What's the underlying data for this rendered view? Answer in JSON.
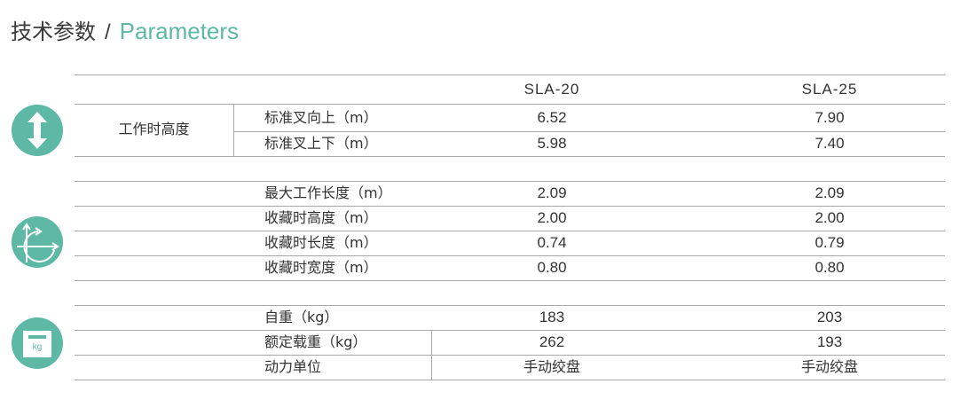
{
  "title": {
    "cn": "技术参数",
    "separator": "/",
    "en": "Parameters"
  },
  "columns": [
    "SLA-20",
    "SLA-25"
  ],
  "groups": [
    {
      "icon": "vertical-arrows-icon",
      "label": "工作时高度",
      "rows": [
        {
          "label": "标准叉向上（m）",
          "values": [
            "6.52",
            "7.90"
          ]
        },
        {
          "label": "标准叉上下（m）",
          "values": [
            "5.98",
            "7.40"
          ]
        }
      ]
    },
    {
      "icon": "axes-rotation-icon",
      "rows": [
        {
          "label": "最大工作长度（m）",
          "values": [
            "2.09",
            "2.09"
          ]
        },
        {
          "label": "收藏时高度（m）",
          "values": [
            "2.00",
            "2.00"
          ]
        },
        {
          "label": "收藏时长度（m）",
          "values": [
            "0.74",
            "0.79"
          ]
        },
        {
          "label": "收藏时宽度（m）",
          "values": [
            "0.80",
            "0.80"
          ]
        }
      ]
    },
    {
      "icon": "weight-kg-icon",
      "icon_text": "kg",
      "rows": [
        {
          "label": "自重（kg）",
          "values": [
            "183",
            "203"
          ]
        },
        {
          "label": "额定载重（kg）",
          "values": [
            "262",
            "193"
          ]
        },
        {
          "label": "动力单位",
          "values": [
            "手动绞盘",
            "手动绞盘"
          ]
        }
      ]
    }
  ],
  "colors": {
    "accent": "#5db8a6",
    "rule": "#a8a8a8"
  }
}
